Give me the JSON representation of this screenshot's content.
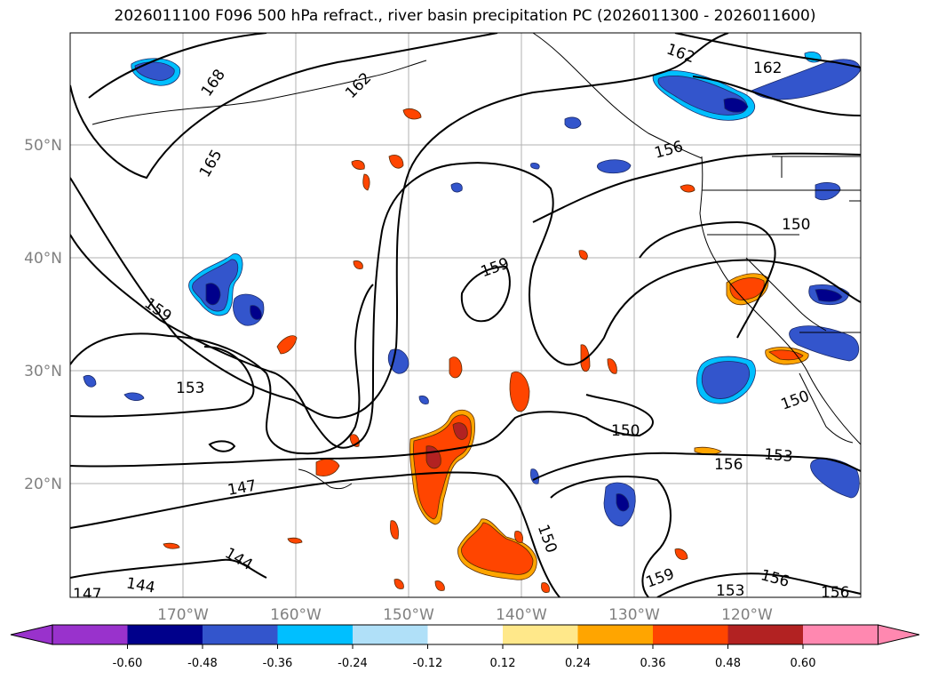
{
  "title": "2026011100 F096 500 hPa refract., river basin precipitation PC (2026011300 - 2026011600)",
  "latitude_labels": [
    "50°N",
    "40°N",
    "30°N",
    "20°N"
  ],
  "longitude_labels": [
    "170°W",
    "160°W",
    "150°W",
    "140°W",
    "130°W",
    "120°W"
  ],
  "contour_labels": [
    "168",
    "165",
    "162",
    "162",
    "162",
    "159",
    "159",
    "159",
    "156",
    "156",
    "156",
    "156",
    "153",
    "153",
    "153",
    "150",
    "150",
    "150",
    "150",
    "147",
    "147",
    "144",
    "144"
  ],
  "colorbar": {
    "tick_labels": [
      "-0.60",
      "-0.48",
      "-0.36",
      "-0.24",
      "-0.12",
      "0.12",
      "0.24",
      "0.36",
      "0.48",
      "0.60"
    ],
    "colors": [
      "#9932cc",
      "#00008b",
      "#3355cc",
      "#00bfff",
      "#b0e0f8",
      "#ffffff",
      "#ffe88a",
      "#ffa500",
      "#ff4500",
      "#b22222",
      "#ff88b0"
    ]
  },
  "colors": {
    "contour": "#000000",
    "gridline": "#b0b0b0",
    "coast": "#000000",
    "axis_label": "#808080"
  }
}
